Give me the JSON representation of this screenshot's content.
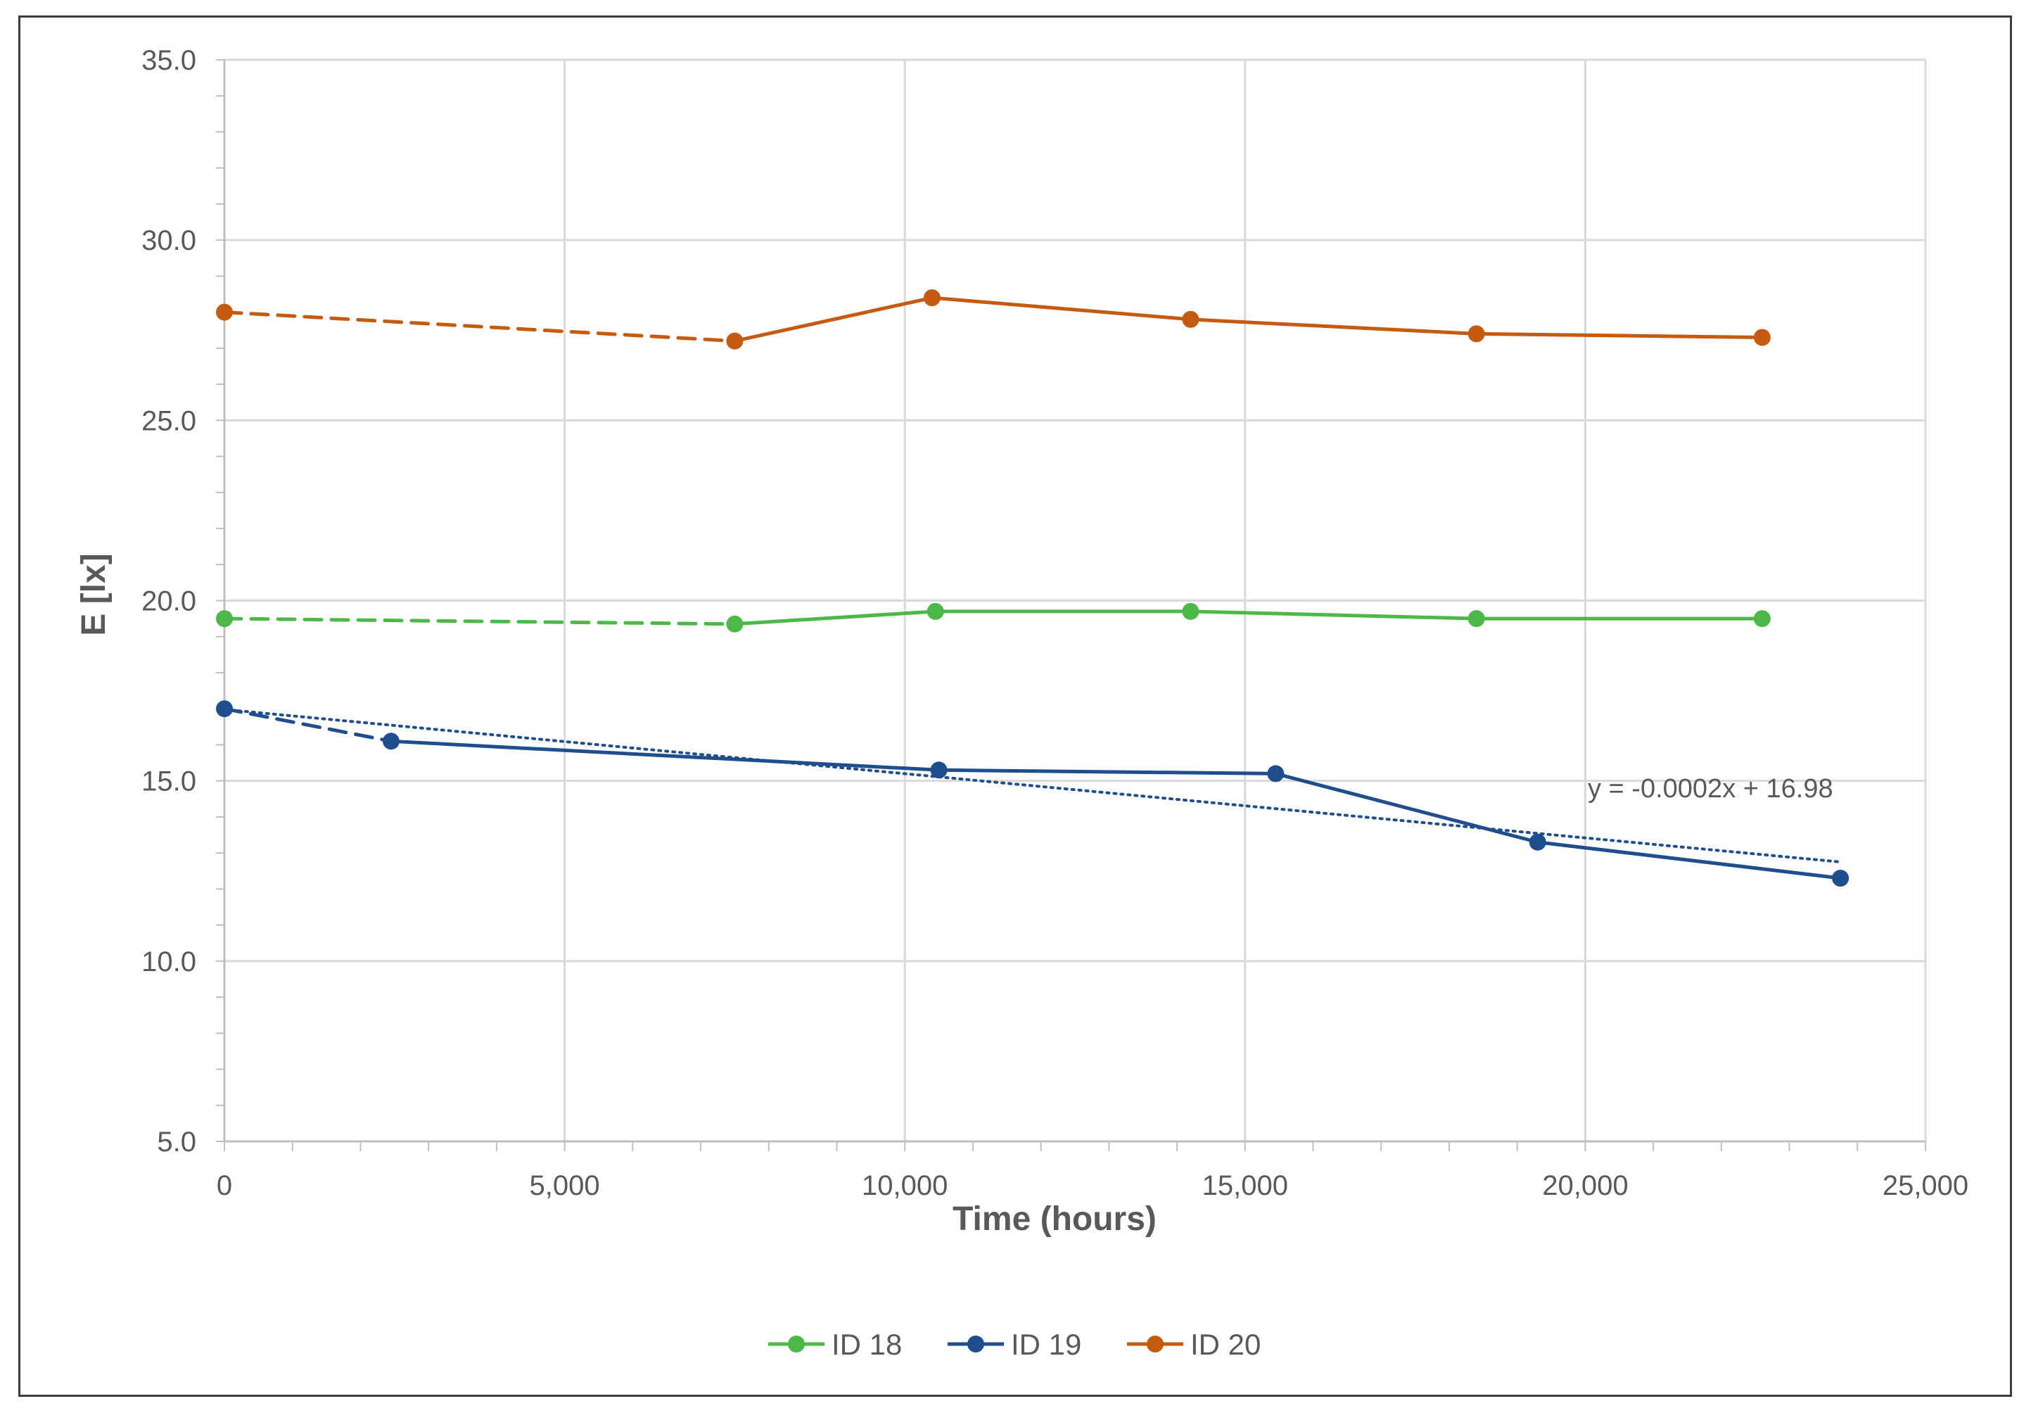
{
  "chart_data": {
    "type": "line",
    "title": "",
    "xlabel": "Time (hours)",
    "ylabel": "E [lx]",
    "xlim": [
      0,
      25000
    ],
    "ylim": [
      5,
      35
    ],
    "x_ticks": [
      0,
      5000,
      10000,
      15000,
      20000,
      25000
    ],
    "x_tick_labels": [
      "0",
      "5,000",
      "10,000",
      "15,000",
      "20,000",
      "25,000"
    ],
    "y_ticks": [
      5,
      10,
      15,
      20,
      25,
      30,
      35
    ],
    "y_tick_labels": [
      "5.0",
      "10.0",
      "15.0",
      "20.0",
      "25.0",
      "30.0",
      "35.0"
    ],
    "grid": true,
    "legend_position": "bottom",
    "series": [
      {
        "name": "ID 18",
        "color": "#4cb848",
        "x": [
          0,
          7500,
          10450,
          14200,
          18400,
          22600
        ],
        "y": [
          19.5,
          19.35,
          19.7,
          19.7,
          19.5,
          19.5
        ],
        "dashed_segments": [
          0
        ]
      },
      {
        "name": "ID 19",
        "color": "#1f4e8c",
        "x": [
          0,
          2450,
          10500,
          15450,
          19300,
          23750
        ],
        "y": [
          17.0,
          16.1,
          15.3,
          15.2,
          13.3,
          12.3
        ],
        "dashed_segments": [
          0
        ]
      },
      {
        "name": "ID 20",
        "color": "#c55a11",
        "x": [
          0,
          7500,
          10400,
          14200,
          18400,
          22600
        ],
        "y": [
          28.0,
          27.2,
          28.4,
          27.8,
          27.4,
          27.3
        ],
        "dashed_segments": [
          0
        ]
      }
    ],
    "trendline": {
      "series": "ID 19",
      "color": "#1f4e8c",
      "equation": "y = -0.0002x + 16.98",
      "x": [
        0,
        23750
      ],
      "y": [
        16.98,
        12.75
      ]
    }
  }
}
